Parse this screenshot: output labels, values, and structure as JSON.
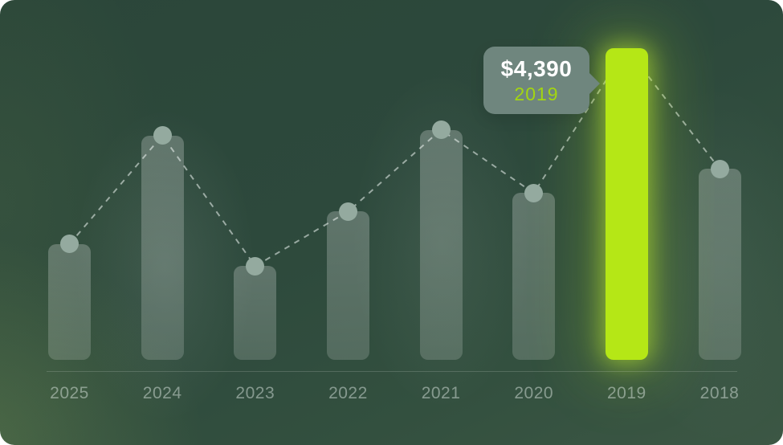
{
  "chart_data": {
    "type": "bar",
    "title": "",
    "xlabel": "",
    "ylabel": "",
    "categories": [
      "2025",
      "2024",
      "2023",
      "2022",
      "2021",
      "2020",
      "2019",
      "2018"
    ],
    "values": [
      1630,
      3160,
      1320,
      2090,
      3240,
      2350,
      4390,
      2690
    ],
    "ylim": [
      0,
      4390
    ],
    "grid": false,
    "legend": "none",
    "overlay": "dashed trend line with circular point markers on bar tops",
    "highlight_index": 6,
    "highlight_category": "2019",
    "highlight_value_label": "$4,390"
  },
  "tooltip": {
    "value": "$4,390",
    "year": "2019"
  },
  "colors": {
    "background": "#2d493c",
    "bar": "rgba(255,255,255,0.20)",
    "highlight_bar": "#b5e716",
    "marker": "#94aa9f",
    "dashed_line": "rgba(240,248,244,0.55)",
    "axis_label": "rgba(236,244,240,0.45)",
    "tooltip_bg": "#6f867e",
    "tooltip_value": "#ffffff",
    "tooltip_year": "#a3d610"
  }
}
